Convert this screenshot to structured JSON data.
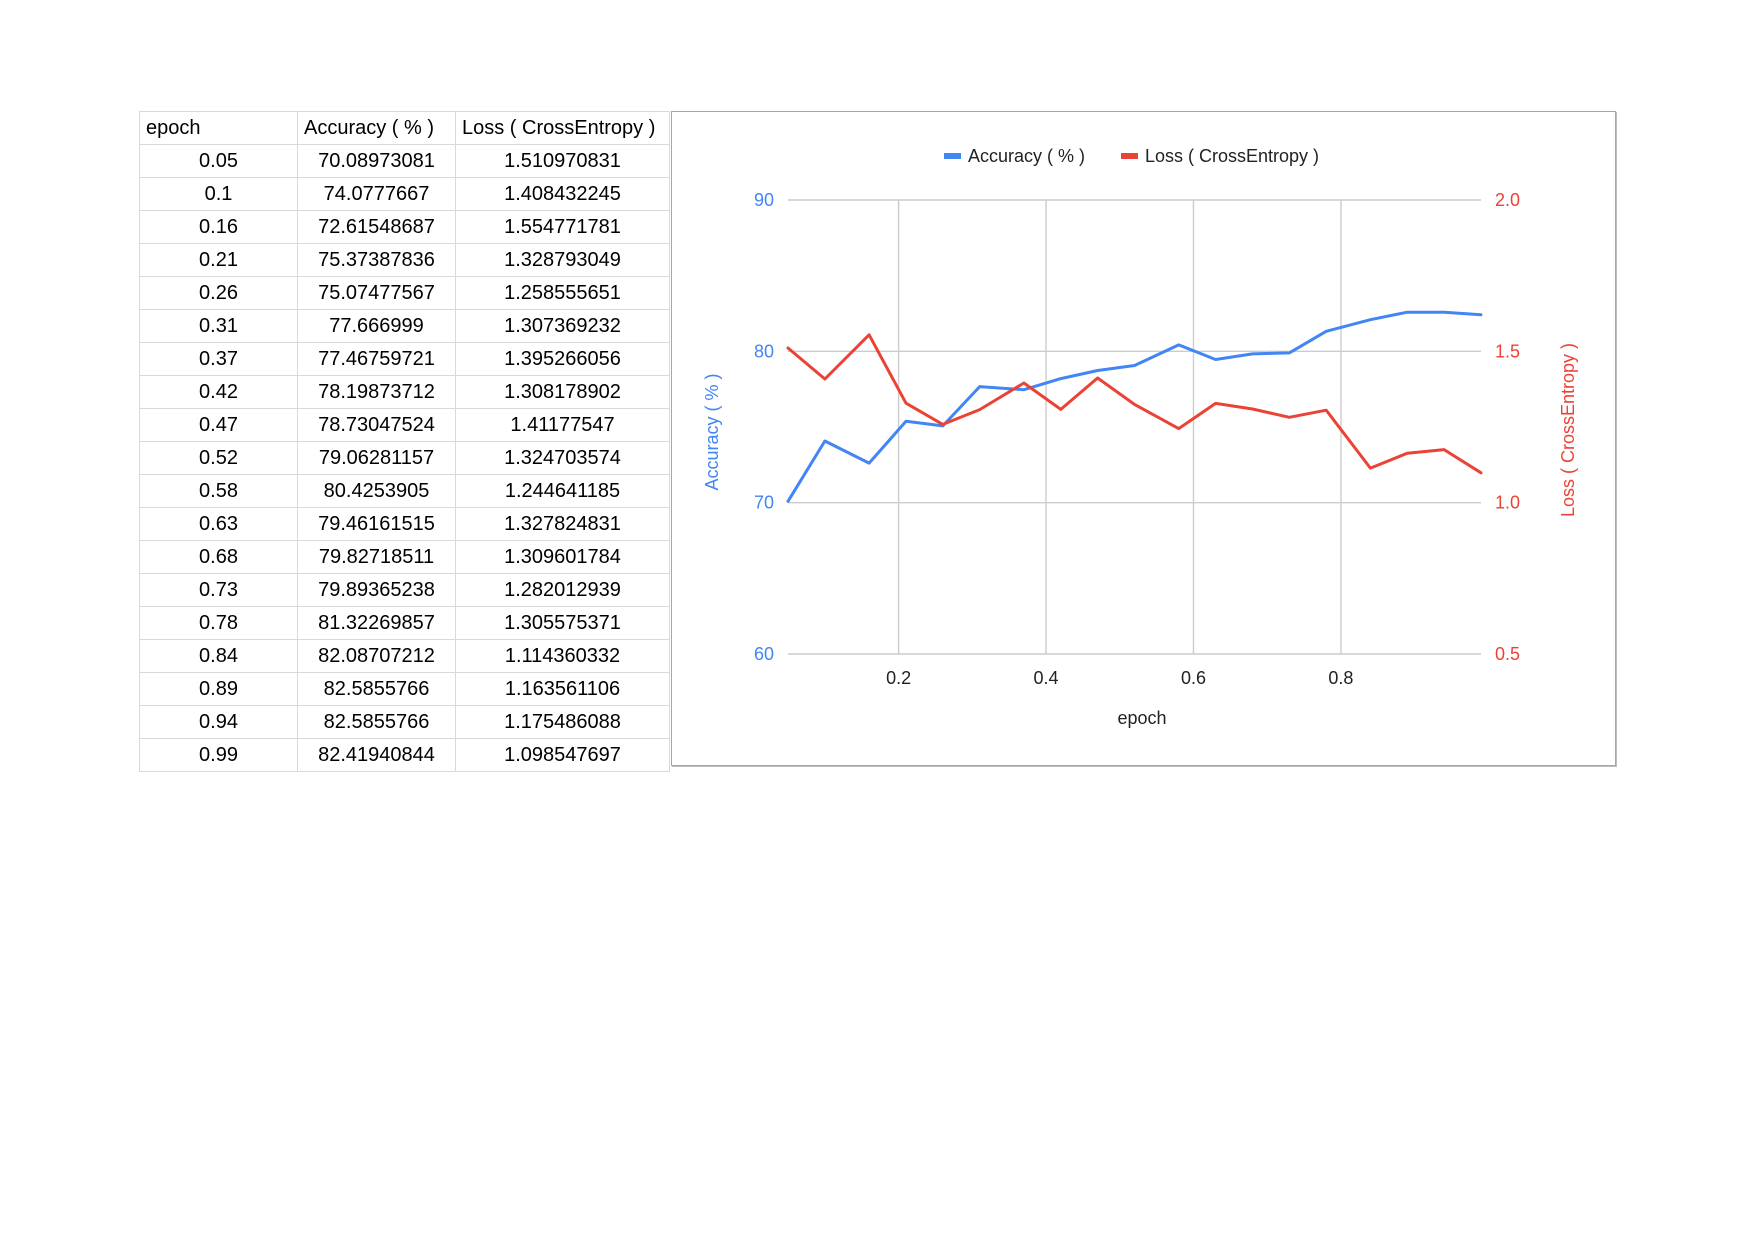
{
  "table": {
    "headers": [
      "epoch",
      "Accuracy ( % )",
      "Loss ( CrossEntropy )"
    ],
    "rows": [
      [
        "0.05",
        "70.08973081",
        "1.510970831"
      ],
      [
        "0.1",
        "74.0777667",
        "1.408432245"
      ],
      [
        "0.16",
        "72.61548687",
        "1.554771781"
      ],
      [
        "0.21",
        "75.37387836",
        "1.328793049"
      ],
      [
        "0.26",
        "75.07477567",
        "1.258555651"
      ],
      [
        "0.31",
        "77.666999",
        "1.307369232"
      ],
      [
        "0.37",
        "77.46759721",
        "1.395266056"
      ],
      [
        "0.42",
        "78.19873712",
        "1.308178902"
      ],
      [
        "0.47",
        "78.73047524",
        "1.41177547"
      ],
      [
        "0.52",
        "79.06281157",
        "1.324703574"
      ],
      [
        "0.58",
        "80.4253905",
        "1.244641185"
      ],
      [
        "0.63",
        "79.46161515",
        "1.327824831"
      ],
      [
        "0.68",
        "79.82718511",
        "1.309601784"
      ],
      [
        "0.73",
        "79.89365238",
        "1.282012939"
      ],
      [
        "0.78",
        "81.32269857",
        "1.305575371"
      ],
      [
        "0.84",
        "82.08707212",
        "1.114360332"
      ],
      [
        "0.89",
        "82.5855766",
        "1.163561106"
      ],
      [
        "0.94",
        "82.5855766",
        "1.175486088"
      ],
      [
        "0.99",
        "82.41940844",
        "1.098547697"
      ]
    ]
  },
  "chart_data": {
    "type": "line",
    "xlabel": "epoch",
    "x": [
      0.05,
      0.1,
      0.16,
      0.21,
      0.26,
      0.31,
      0.37,
      0.42,
      0.47,
      0.52,
      0.58,
      0.63,
      0.68,
      0.73,
      0.78,
      0.84,
      0.89,
      0.94,
      0.99
    ],
    "xlim": [
      0.05,
      0.99
    ],
    "xticks": [
      0.2,
      0.4,
      0.6,
      0.8
    ],
    "xtick_labels": [
      "0.2",
      "0.4",
      "0.6",
      "0.8"
    ],
    "y_left": {
      "label": "Accuracy ( % )",
      "lim": [
        60,
        90
      ],
      "ticks": [
        60,
        70,
        80,
        90
      ],
      "tick_labels": [
        "60",
        "70",
        "80",
        "90"
      ],
      "color": "#4285f4"
    },
    "y_right": {
      "label": "Loss ( CrossEntropy )",
      "lim": [
        0.5,
        2.0
      ],
      "ticks": [
        0.5,
        1.0,
        1.5,
        2.0
      ],
      "tick_labels": [
        "0.5",
        "1.0",
        "1.5",
        "2.0"
      ],
      "color": "#ea4335"
    },
    "series": [
      {
        "name": "Accuracy ( % )",
        "axis": "left",
        "color": "#4285f4",
        "values": [
          70.08973081,
          74.0777667,
          72.61548687,
          75.37387836,
          75.07477567,
          77.666999,
          77.46759721,
          78.19873712,
          78.73047524,
          79.06281157,
          80.4253905,
          79.46161515,
          79.82718511,
          79.89365238,
          81.32269857,
          82.08707212,
          82.5855766,
          82.5855766,
          82.41940844
        ]
      },
      {
        "name": "Loss ( CrossEntropy )",
        "axis": "right",
        "color": "#ea4335",
        "values": [
          1.510970831,
          1.408432245,
          1.554771781,
          1.328793049,
          1.258555651,
          1.307369232,
          1.395266056,
          1.308178902,
          1.41177547,
          1.324703574,
          1.244641185,
          1.327824831,
          1.309601784,
          1.282012939,
          1.305575371,
          1.114360332,
          1.163561106,
          1.175486088,
          1.098547697
        ]
      }
    ],
    "legend": "top-center",
    "grid": true
  }
}
